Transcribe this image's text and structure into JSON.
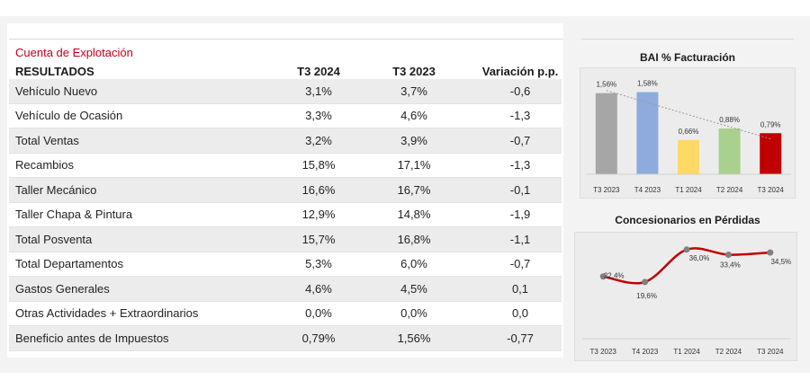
{
  "table": {
    "title": "Cuenta de Explotación",
    "headers": [
      "RESULTADOS",
      "T3 2024",
      "T3 2023",
      "Variación p.p."
    ],
    "rows": [
      {
        "label": "Vehículo Nuevo",
        "t3_2024": "3,1%",
        "t3_2023": "3,7%",
        "variation": "-0,6",
        "shaded": true
      },
      {
        "label": "Vehículo de Ocasión",
        "t3_2024": "3,3%",
        "t3_2023": "4,6%",
        "variation": "-1,3",
        "shaded": false
      },
      {
        "label": "Total Ventas",
        "t3_2024": "3,2%",
        "t3_2023": "3,9%",
        "variation": "-0,7",
        "shaded": true
      },
      {
        "label": "Recambios",
        "t3_2024": "15,8%",
        "t3_2023": "17,1%",
        "variation": "-1,3",
        "shaded": false
      },
      {
        "label": "Taller Mecánico",
        "t3_2024": "16,6%",
        "t3_2023": "16,7%",
        "variation": "-0,1",
        "shaded": true
      },
      {
        "label": "Taller Chapa & Pintura",
        "t3_2024": "12,9%",
        "t3_2023": "14,8%",
        "variation": "-1,9",
        "shaded": false
      },
      {
        "label": "Total Posventa",
        "t3_2024": "15,7%",
        "t3_2023": "16,8%",
        "variation": "-1,1",
        "shaded": true
      },
      {
        "label": "Total Departamentos",
        "t3_2024": "5,3%",
        "t3_2023": "6,0%",
        "variation": "-0,7",
        "shaded": false
      },
      {
        "label": "Gastos Generales",
        "t3_2024": "4,6%",
        "t3_2023": "4,5%",
        "variation": "0,1",
        "shaded": true
      },
      {
        "label": "Otras Actividades + Extraordinarios",
        "t3_2024": "0,0%",
        "t3_2023": "0,0%",
        "variation": "0,0",
        "shaded": false
      },
      {
        "label": "Beneficio antes de Impuestos",
        "t3_2024": "0,79%",
        "t3_2023": "1,56%",
        "variation": "-0,77",
        "shaded": true
      }
    ]
  },
  "chart_data": [
    {
      "type": "bar",
      "title": "BAI % Facturación",
      "categories": [
        "T3 2023",
        "T4 2023",
        "T1 2024",
        "T2 2024",
        "T3 2024"
      ],
      "values": [
        1.56,
        1.58,
        0.66,
        0.88,
        0.79
      ],
      "data_labels": [
        "1,56%",
        "1,58%",
        "0,66%",
        "0,88%",
        "0,79%"
      ],
      "colors": [
        "#a6a6a6",
        "#8faadc",
        "#ffd966",
        "#a9d18e",
        "#c00000"
      ],
      "trendline": true,
      "ylim": [
        0,
        1.9
      ],
      "grid": false
    },
    {
      "type": "line",
      "title": "Concesionarios en Pérdidas",
      "categories": [
        "T3 2023",
        "T4 2023",
        "T1 2024",
        "T2 2024",
        "T3 2024"
      ],
      "values": [
        22.4,
        19.6,
        36.0,
        33.4,
        34.5
      ],
      "data_labels": [
        "22,4%",
        "19,6%",
        "36,0%",
        "33,4%",
        "34,5%"
      ],
      "line_color": "#c00000",
      "marker_color": "#808080",
      "ylim": [
        10,
        40
      ],
      "grid": false
    }
  ]
}
